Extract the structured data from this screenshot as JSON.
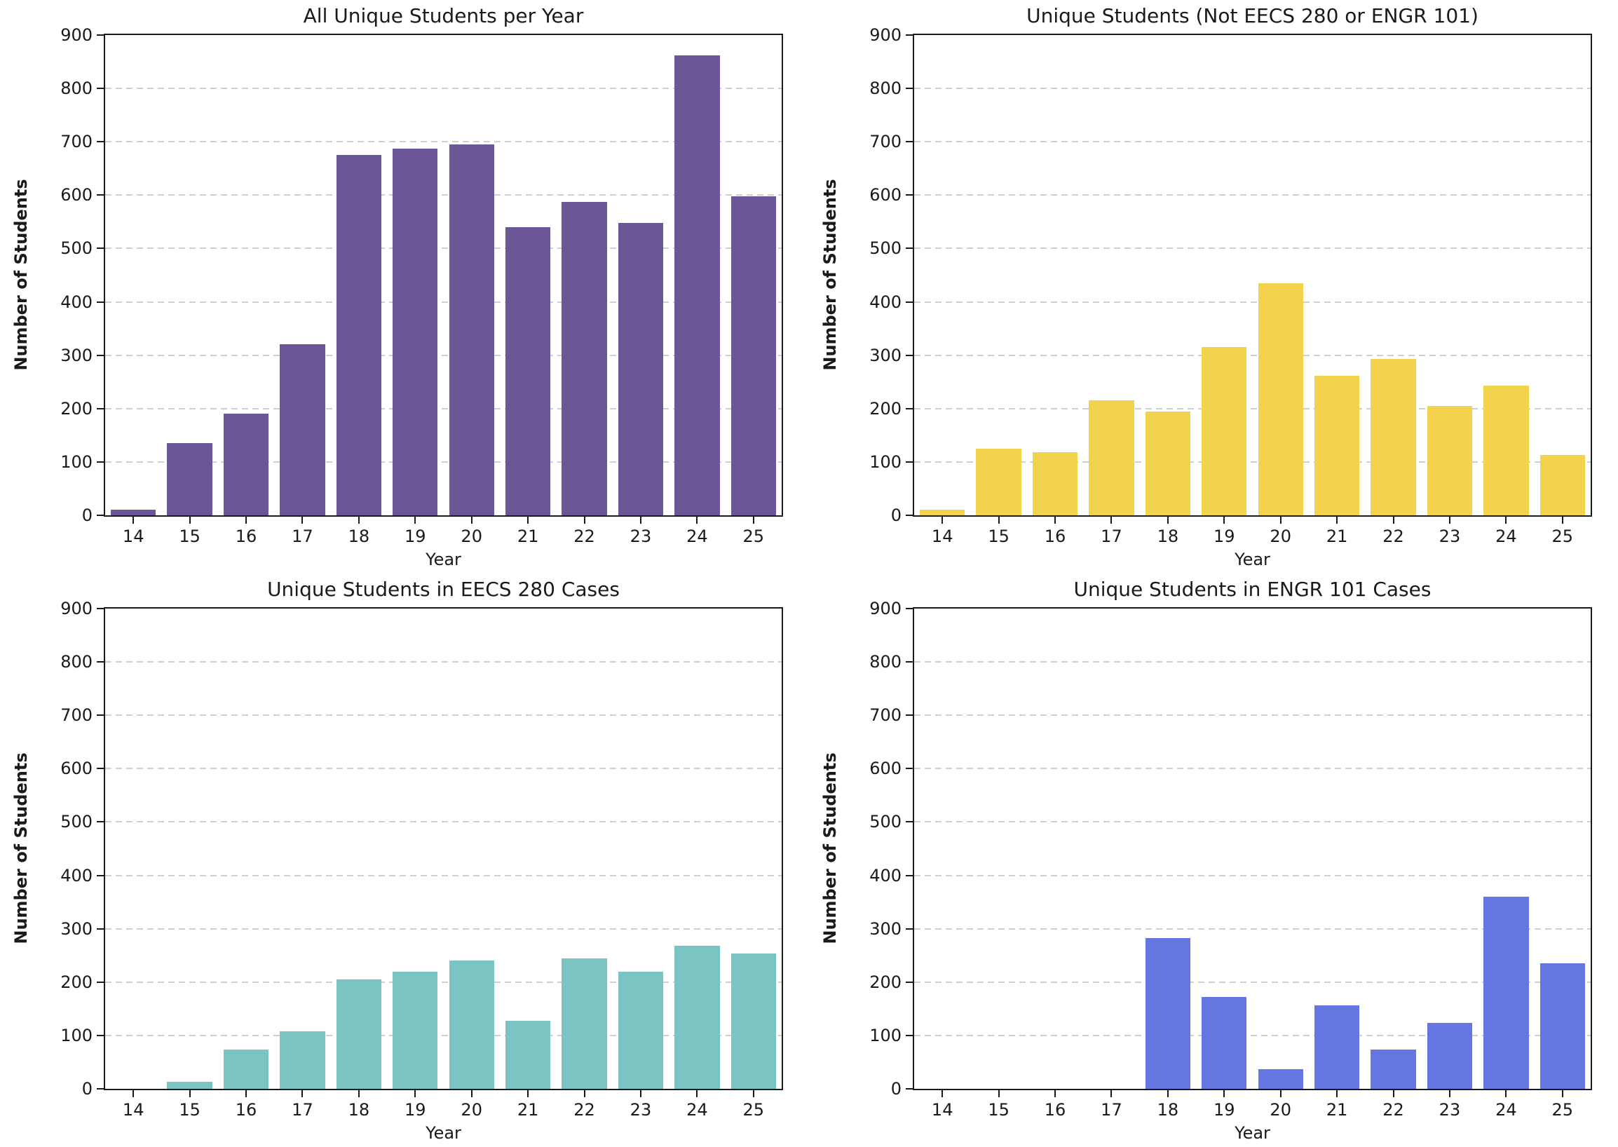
{
  "figure": {
    "background": "#ffffff",
    "axis_color": "#1a1a1a",
    "grid_color": "#cfcfcf",
    "grid_style": "dashed-horizontal",
    "tick_label_color": "#1a1a1a"
  },
  "chart_data": [
    {
      "type": "bar",
      "title": "All Unique Students per Year",
      "xlabel": "Year",
      "ylabel": "Number of Students",
      "bar_color": "#6b5798",
      "ylim": [
        0,
        900
      ],
      "ytick_step": 100,
      "grid": "horizontal dashed",
      "legend": "none",
      "categories": [
        "14",
        "15",
        "16",
        "17",
        "18",
        "19",
        "20",
        "21",
        "22",
        "23",
        "24",
        "25"
      ],
      "values": [
        10,
        135,
        190,
        320,
        675,
        687,
        695,
        540,
        587,
        548,
        862,
        598
      ]
    },
    {
      "type": "bar",
      "title": "Unique Students (Not EECS 280 or ENGR 101)",
      "xlabel": "Year",
      "ylabel": "Number of Students",
      "bar_color": "#f1d34e",
      "ylim": [
        0,
        900
      ],
      "ytick_step": 100,
      "grid": "horizontal dashed",
      "legend": "none",
      "categories": [
        "14",
        "15",
        "16",
        "17",
        "18",
        "19",
        "20",
        "21",
        "22",
        "23",
        "24",
        "25"
      ],
      "values": [
        10,
        125,
        118,
        215,
        195,
        315,
        435,
        262,
        293,
        205,
        243,
        113
      ]
    },
    {
      "type": "bar",
      "title": "Unique Students in EECS 280 Cases",
      "xlabel": "Year",
      "ylabel": "Number of Students",
      "bar_color": "#7ac4c3",
      "ylim": [
        0,
        900
      ],
      "ytick_step": 100,
      "grid": "horizontal dashed",
      "legend": "none",
      "categories": [
        "14",
        "15",
        "16",
        "17",
        "18",
        "19",
        "20",
        "21",
        "22",
        "23",
        "24",
        "25"
      ],
      "values": [
        0,
        13,
        73,
        108,
        205,
        220,
        240,
        127,
        245,
        220,
        268,
        253
      ]
    },
    {
      "type": "bar",
      "title": "Unique Students in ENGR 101 Cases",
      "xlabel": "Year",
      "ylabel": "Number of Students",
      "bar_color": "#6576e0",
      "ylim": [
        0,
        900
      ],
      "ytick_step": 100,
      "grid": "horizontal dashed",
      "legend": "none",
      "categories": [
        "14",
        "15",
        "16",
        "17",
        "18",
        "19",
        "20",
        "21",
        "22",
        "23",
        "24",
        "25"
      ],
      "values": [
        0,
        0,
        0,
        0,
        283,
        172,
        37,
        157,
        73,
        123,
        360,
        235
      ]
    }
  ]
}
